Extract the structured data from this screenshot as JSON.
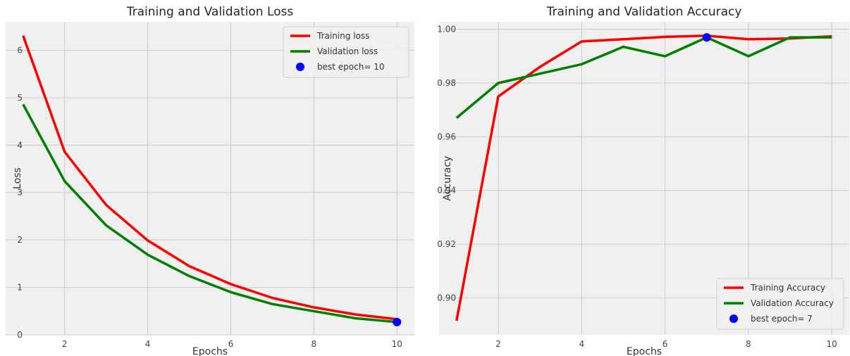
{
  "chart_data": [
    {
      "type": "line",
      "title": "Training and Validation Loss",
      "xlabel": "Epochs",
      "ylabel": "Loss",
      "xlim": [
        0.58,
        10.42
      ],
      "ylim": [
        0,
        6.6
      ],
      "xticks": [
        2,
        4,
        6,
        8,
        10
      ],
      "yticks": [
        0,
        1,
        2,
        3,
        4,
        5,
        6
      ],
      "grid": true,
      "legend_position": "top-right",
      "x": [
        1,
        2,
        3,
        4,
        5,
        6,
        7,
        8,
        9,
        10
      ],
      "series": [
        {
          "name": "Training loss",
          "color": "#ff0000",
          "values": [
            6.31,
            3.86,
            2.74,
            1.99,
            1.45,
            1.07,
            0.78,
            0.58,
            0.43,
            0.33
          ]
        },
        {
          "name": "Validation loss",
          "color": "#008000",
          "values": [
            4.86,
            3.24,
            2.31,
            1.69,
            1.24,
            0.9,
            0.65,
            0.5,
            0.35,
            0.27
          ]
        }
      ],
      "best_point": {
        "label": "best epoch= 10",
        "x": 10,
        "y": 0.27,
        "color": "#0000ff"
      }
    },
    {
      "type": "line",
      "title": "Training and Validation Accuracy",
      "xlabel": "Epochs",
      "ylabel": "Accuracy",
      "xlim": [
        0.58,
        10.42
      ],
      "ylim": [
        0.8862,
        1.0028
      ],
      "xticks": [
        2,
        4,
        6,
        8,
        10
      ],
      "yticks": [
        0.9,
        0.92,
        0.94,
        0.96,
        0.98,
        1.0
      ],
      "ytick_labels": [
        "0.90",
        "0.92",
        "0.94",
        "0.96",
        "0.98",
        "1.00"
      ],
      "grid": true,
      "legend_position": "bottom-right",
      "x": [
        1,
        2,
        3,
        4,
        5,
        6,
        7,
        8,
        9,
        10
      ],
      "series": [
        {
          "name": "Training Accuracy",
          "color": "#ff0000",
          "values": [
            0.8915,
            0.975,
            0.986,
            0.9955,
            0.9963,
            0.9972,
            0.9976,
            0.9963,
            0.9966,
            0.9974
          ]
        },
        {
          "name": "Validation Accuracy",
          "color": "#008000",
          "values": [
            0.967,
            0.98,
            0.9835,
            0.987,
            0.9935,
            0.99,
            0.997,
            0.99,
            0.997,
            0.997
          ]
        }
      ],
      "best_point": {
        "label": "best epoch= 7",
        "x": 7,
        "y": 0.997,
        "color": "#0000ff"
      }
    }
  ]
}
